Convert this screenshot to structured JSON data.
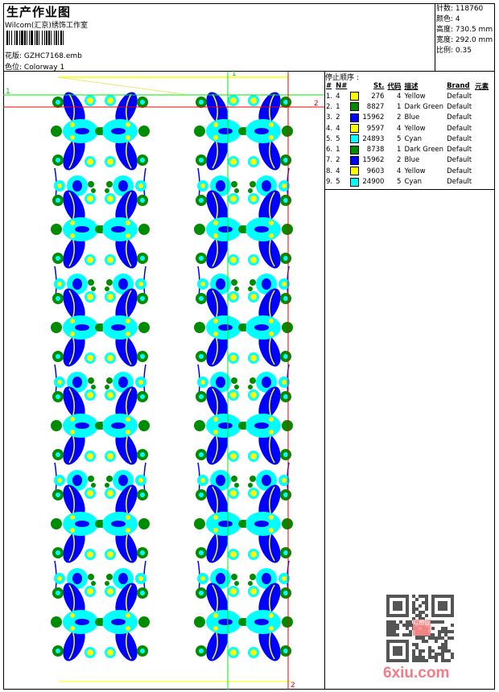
{
  "header": {
    "title": "生产作业图",
    "company": "Wilcom(汇京)绣饰工作室",
    "design_label": "花版:",
    "design_value": "GZHC7168.emb",
    "colorway_label": "色位:",
    "colorway_value": "Colorway 1"
  },
  "info": {
    "stitches_label": "针数:",
    "stitches_value": "118760",
    "colors_label": "颜色:",
    "colors_value": "4",
    "height_label": "高度:",
    "height_value": "730.5 mm",
    "width_label": "宽度:",
    "width_value": "292.0 mm",
    "scale_label": "比例:",
    "scale_value": "0.35"
  },
  "stop_sequence": {
    "title": "停止顺序 :",
    "columns": [
      "#",
      "N#",
      "St.",
      "代码",
      "描述",
      "Brand",
      "元素"
    ],
    "rows": [
      {
        "idx": "1.",
        "n": "4",
        "color": "#ffff00",
        "st": "276",
        "code": "4",
        "desc": "Yellow",
        "brand": "Default"
      },
      {
        "idx": "2.",
        "n": "1",
        "color": "#008c00",
        "st": "8827",
        "code": "1",
        "desc": "Dark Green",
        "brand": "Default"
      },
      {
        "idx": "3.",
        "n": "2",
        "color": "#0000ff",
        "st": "15962",
        "code": "2",
        "desc": "Blue",
        "brand": "Default"
      },
      {
        "idx": "4.",
        "n": "4",
        "color": "#ffff00",
        "st": "9597",
        "code": "4",
        "desc": "Yellow",
        "brand": "Default"
      },
      {
        "idx": "5.",
        "n": "5",
        "color": "#00ffff",
        "st": "24893",
        "code": "5",
        "desc": "Cyan",
        "brand": "Default"
      },
      {
        "idx": "6.",
        "n": "1",
        "color": "#008c00",
        "st": "8738",
        "code": "1",
        "desc": "Dark Green",
        "brand": "Default"
      },
      {
        "idx": "7.",
        "n": "2",
        "color": "#0000ff",
        "st": "15962",
        "code": "2",
        "desc": "Blue",
        "brand": "Default"
      },
      {
        "idx": "8.",
        "n": "4",
        "color": "#ffff00",
        "st": "9603",
        "code": "4",
        "desc": "Yellow",
        "brand": "Default"
      },
      {
        "idx": "9.",
        "n": "5",
        "color": "#00ffff",
        "st": "24900",
        "code": "5",
        "desc": "Cyan",
        "brand": "Default"
      }
    ]
  },
  "guides": {
    "green_label": "1",
    "red_label": "2"
  },
  "watermark": {
    "text": "6xiu.com",
    "stamp": "以图版"
  }
}
